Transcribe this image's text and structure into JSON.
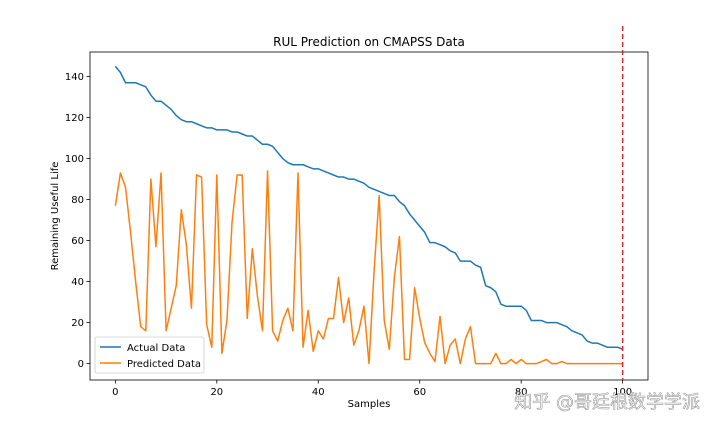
{
  "chart_data": {
    "type": "line",
    "title": "RUL Prediction on CMAPSS Data",
    "xlabel": "Samples",
    "ylabel": "Remaining Useful Life",
    "xlim": [
      -5,
      105
    ],
    "ylim": [
      -8,
      152
    ],
    "xticks": [
      0,
      20,
      40,
      60,
      80,
      100
    ],
    "yticks": [
      0,
      20,
      40,
      60,
      80,
      100,
      120,
      140
    ],
    "grid": false,
    "legend_position": "lower-left",
    "vline": {
      "x": 100,
      "color": "#d62728",
      "style": "dashed"
    },
    "series": [
      {
        "name": "Actual Data",
        "color": "#1f77b4",
        "x": [
          0,
          1,
          2,
          3,
          4,
          5,
          6,
          7,
          8,
          9,
          10,
          11,
          12,
          13,
          14,
          15,
          16,
          17,
          18,
          19,
          20,
          21,
          22,
          23,
          24,
          25,
          26,
          27,
          28,
          29,
          30,
          31,
          32,
          33,
          34,
          35,
          36,
          37,
          38,
          39,
          40,
          41,
          42,
          43,
          44,
          45,
          46,
          47,
          48,
          49,
          50,
          51,
          52,
          53,
          54,
          55,
          56,
          57,
          58,
          59,
          60,
          61,
          62,
          63,
          64,
          65,
          66,
          67,
          68,
          69,
          70,
          71,
          72,
          73,
          74,
          75,
          76,
          77,
          78,
          79,
          80,
          81,
          82,
          83,
          84,
          85,
          86,
          87,
          88,
          89,
          90,
          91,
          92,
          93,
          94,
          95,
          96,
          97,
          98,
          99,
          100
        ],
        "values": [
          145,
          142,
          137,
          137,
          137,
          136,
          135,
          131,
          128,
          128,
          126,
          124,
          121,
          119,
          118,
          118,
          117,
          116,
          115,
          115,
          114,
          114,
          114,
          113,
          113,
          112,
          111,
          111,
          109,
          107,
          107,
          106,
          103,
          100,
          98,
          97,
          97,
          97,
          96,
          95,
          95,
          94,
          93,
          92,
          91,
          91,
          90,
          90,
          89,
          88,
          86,
          85,
          84,
          83,
          82,
          82,
          79,
          77,
          73,
          70,
          67,
          64,
          59,
          59,
          58,
          57,
          55,
          54,
          50,
          50,
          50,
          48,
          47,
          38,
          37,
          35,
          29,
          28,
          28,
          28,
          28,
          26,
          21,
          21,
          21,
          20,
          20,
          20,
          19,
          18,
          16,
          15,
          14,
          11,
          10,
          10,
          9,
          8,
          8,
          8,
          7
        ]
      },
      {
        "name": "Predicted Data",
        "color": "#ff7f0e",
        "x": [
          0,
          1,
          2,
          3,
          4,
          5,
          6,
          7,
          8,
          9,
          10,
          11,
          12,
          13,
          14,
          15,
          16,
          17,
          18,
          19,
          20,
          21,
          22,
          23,
          24,
          25,
          26,
          27,
          28,
          29,
          30,
          31,
          32,
          33,
          34,
          35,
          36,
          37,
          38,
          39,
          40,
          41,
          42,
          43,
          44,
          45,
          46,
          47,
          48,
          49,
          50,
          51,
          52,
          53,
          54,
          55,
          56,
          57,
          58,
          59,
          60,
          61,
          62,
          63,
          64,
          65,
          66,
          67,
          68,
          69,
          70,
          71,
          72,
          73,
          74,
          75,
          76,
          77,
          78,
          79,
          80,
          81,
          82,
          83,
          84,
          85,
          86,
          87,
          88,
          89,
          90,
          91,
          92,
          93,
          94,
          95,
          96,
          97,
          98,
          99,
          100
        ],
        "values": [
          77,
          93,
          86,
          64,
          40,
          18,
          16,
          90,
          57,
          93,
          16,
          27,
          38,
          75,
          58,
          27,
          92,
          91,
          19,
          8,
          92,
          5,
          21,
          69,
          92,
          92,
          22,
          56,
          33,
          16,
          94,
          16,
          11,
          21,
          27,
          16,
          93,
          8,
          26,
          6,
          16,
          12,
          22,
          22,
          42,
          20,
          32,
          9,
          16,
          28,
          0,
          45,
          82,
          21,
          7,
          42,
          62,
          2,
          2,
          37,
          22,
          10,
          5,
          1,
          23,
          0,
          9,
          12,
          0,
          12,
          18,
          0,
          0,
          0,
          0,
          5,
          0,
          0,
          2,
          0,
          2,
          0,
          0,
          0,
          1,
          2,
          0,
          0,
          1,
          0,
          0,
          0,
          0,
          0,
          0,
          0,
          0,
          0,
          0,
          0,
          0
        ]
      }
    ]
  },
  "watermark": "知乎 @哥廷根数学学派"
}
